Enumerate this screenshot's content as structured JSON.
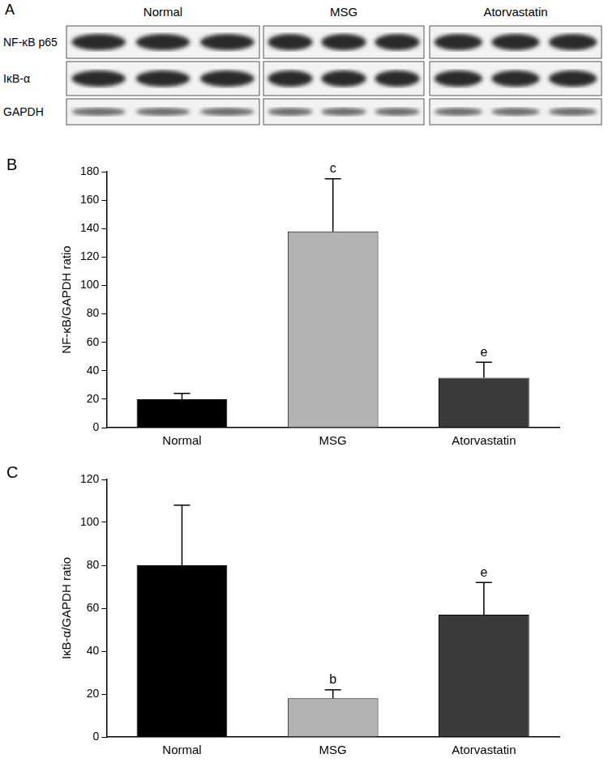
{
  "blot": {
    "panel": "A",
    "groups": [
      "Normal",
      "MSG",
      "Atorvastatin"
    ],
    "rows": [
      "NF-κB p65",
      "IκB-α",
      "GAPDH"
    ]
  },
  "chart_data": [
    {
      "type": "bar",
      "panel": "B",
      "categories": [
        "Normal",
        "MSG",
        "Atorvastatin"
      ],
      "values": [
        20,
        138,
        35
      ],
      "errors": [
        4,
        37,
        11
      ],
      "annotations": [
        null,
        "c",
        "e"
      ],
      "colors": [
        "#000000",
        "#b3b3b3",
        "#3a3a3a"
      ],
      "ylabel": "NF-κB/GAPDH ratio",
      "ylim": [
        0,
        180
      ],
      "yticks": [
        0,
        20,
        40,
        60,
        80,
        100,
        120,
        140,
        160,
        180
      ],
      "grid": false
    },
    {
      "type": "bar",
      "panel": "C",
      "categories": [
        "Normal",
        "MSG",
        "Atorvastatin"
      ],
      "values": [
        80,
        18,
        57
      ],
      "errors": [
        28,
        4,
        15
      ],
      "annotations": [
        null,
        "b",
        "e"
      ],
      "colors": [
        "#000000",
        "#b3b3b3",
        "#3a3a3a"
      ],
      "ylabel": "IκB-α/GAPDH ratio",
      "ylim": [
        0,
        120
      ],
      "yticks": [
        0,
        20,
        40,
        60,
        80,
        100,
        120
      ],
      "grid": false
    }
  ]
}
